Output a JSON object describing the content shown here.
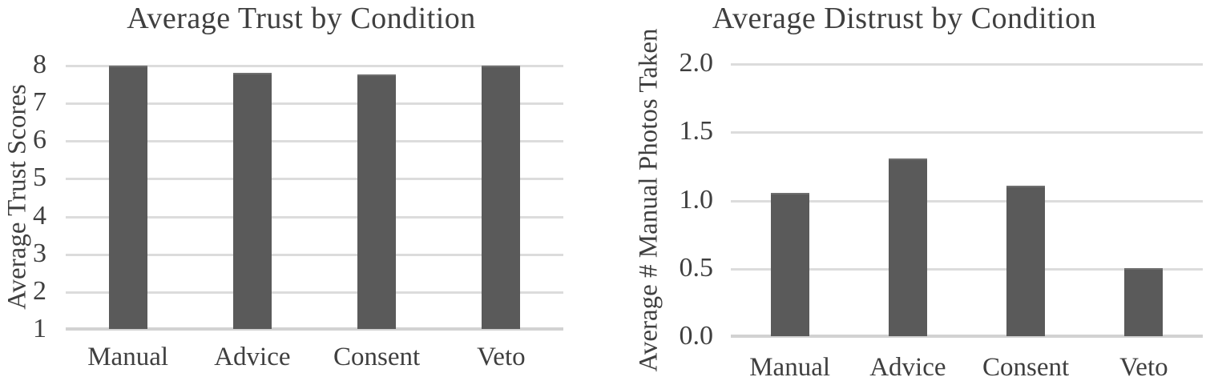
{
  "figure_background": "#ffffff",
  "colors": {
    "bar": "#5a5a5a",
    "gridline": "#dcdcdc",
    "axis_line": "#d2d2d2",
    "text": "#3f3f3f"
  },
  "chart_data": [
    {
      "type": "bar",
      "title": "Average Trust by Condition",
      "xlabel": "",
      "ylabel": "Average Trust Scores",
      "categories": [
        "Manual",
        "Advice",
        "Consent",
        "Veto"
      ],
      "values": [
        7.97,
        7.79,
        7.74,
        7.97
      ],
      "ylim": [
        1,
        8
      ],
      "yticks": [
        1,
        2,
        3,
        4,
        5,
        6,
        7,
        8
      ],
      "ytick_labels": [
        "1",
        "2",
        "3",
        "4",
        "5",
        "6",
        "7",
        "8"
      ],
      "grid": true,
      "legend": false,
      "bar_color": "#5a5a5a",
      "gridline_color": "#dcdcdc"
    },
    {
      "type": "bar",
      "title": "Average Distrust by Condition",
      "xlabel": "",
      "ylabel": "Average # Manual Photos Taken",
      "categories": [
        "Manual",
        "Advice",
        "Consent",
        "Veto"
      ],
      "values": [
        1.05,
        1.3,
        1.1,
        0.5
      ],
      "ylim": [
        0,
        2
      ],
      "yticks": [
        0,
        0.5,
        1,
        1.5,
        2
      ],
      "ytick_labels": [
        "0.0",
        "0.5",
        "1.0",
        "1.5",
        "2.0"
      ],
      "grid": true,
      "legend": false,
      "bar_color": "#5a5a5a",
      "gridline_color": "#dcdcdc"
    }
  ]
}
